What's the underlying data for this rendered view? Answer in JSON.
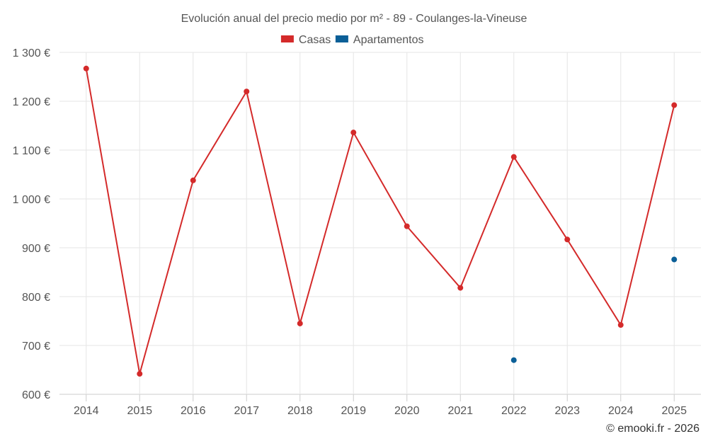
{
  "chart_data": {
    "type": "line",
    "title": "Evolución anual del precio medio por m² - 89 - Coulanges-la-Vineuse",
    "x": [
      "2014",
      "2015",
      "2016",
      "2017",
      "2018",
      "2019",
      "2020",
      "2021",
      "2022",
      "2023",
      "2024",
      "2025"
    ],
    "y_ticks": [
      "600 €",
      "700 €",
      "800 €",
      "900 €",
      "1 000 €",
      "1 100 €",
      "1 200 €",
      "1 300 €"
    ],
    "y_tick_values": [
      600,
      700,
      800,
      900,
      1000,
      1100,
      1200,
      1300
    ],
    "ylim": [
      600,
      1300
    ],
    "grid": true,
    "legend_position": "top-center",
    "series": [
      {
        "name": "Casas",
        "color": "#d42a2a",
        "values": [
          1267,
          642,
          1038,
          1220,
          745,
          1136,
          944,
          818,
          1086,
          917,
          742,
          1192
        ]
      },
      {
        "name": "Apartamentos",
        "color": "#0b5f97",
        "values": [
          null,
          null,
          null,
          null,
          null,
          null,
          null,
          null,
          670,
          null,
          null,
          876
        ]
      }
    ],
    "credit": "© emooki.fr - 2026"
  }
}
